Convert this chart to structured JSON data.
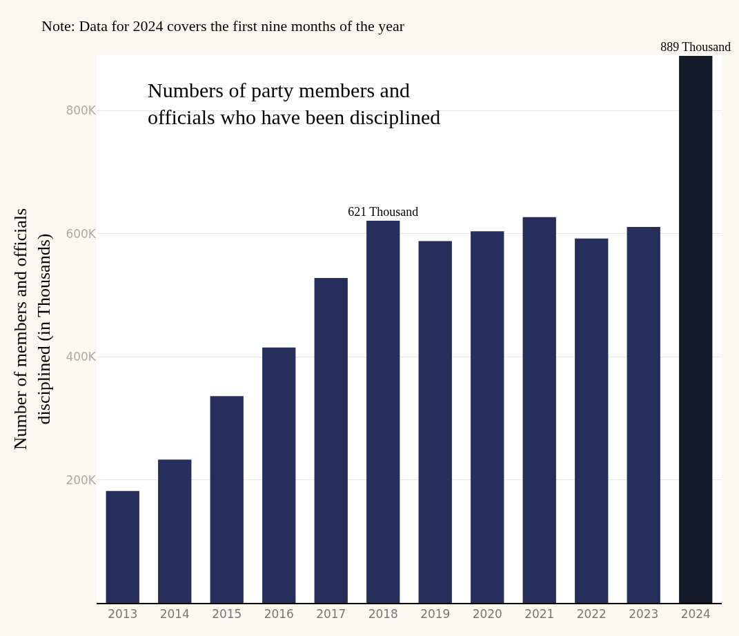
{
  "chart_data": {
    "type": "bar",
    "title": "Numbers of party members and officials who have been disciplined",
    "ylabel": "Number of members and officials disciplined (in Thousands)",
    "annotations": [
      "Note: Data for 2024 covers the first nine months of the year"
    ],
    "categories": [
      "2013",
      "2014",
      "2015",
      "2016",
      "2017",
      "2018",
      "2019",
      "2020",
      "2021",
      "2022",
      "2023",
      "2024"
    ],
    "values": [
      182,
      233,
      336,
      415,
      528,
      621,
      588,
      604,
      627,
      592,
      611,
      889
    ],
    "colors": [
      "#262f5c",
      "#262f5c",
      "#262f5c",
      "#262f5c",
      "#262f5c",
      "#262f5c",
      "#262f5c",
      "#262f5c",
      "#262f5c",
      "#262f5c",
      "#262f5c",
      "#151a2b"
    ],
    "value_labels": [
      null,
      null,
      null,
      null,
      null,
      "621 Thousand",
      null,
      null,
      null,
      null,
      null,
      "889 Thousand"
    ],
    "ylim": [
      0,
      890
    ],
    "yticks": [
      {
        "value": 200,
        "label": "200K"
      },
      {
        "value": 400,
        "label": "400K"
      },
      {
        "value": 600,
        "label": "600K"
      },
      {
        "value": 800,
        "label": "800K"
      }
    ],
    "grid": "y"
  }
}
